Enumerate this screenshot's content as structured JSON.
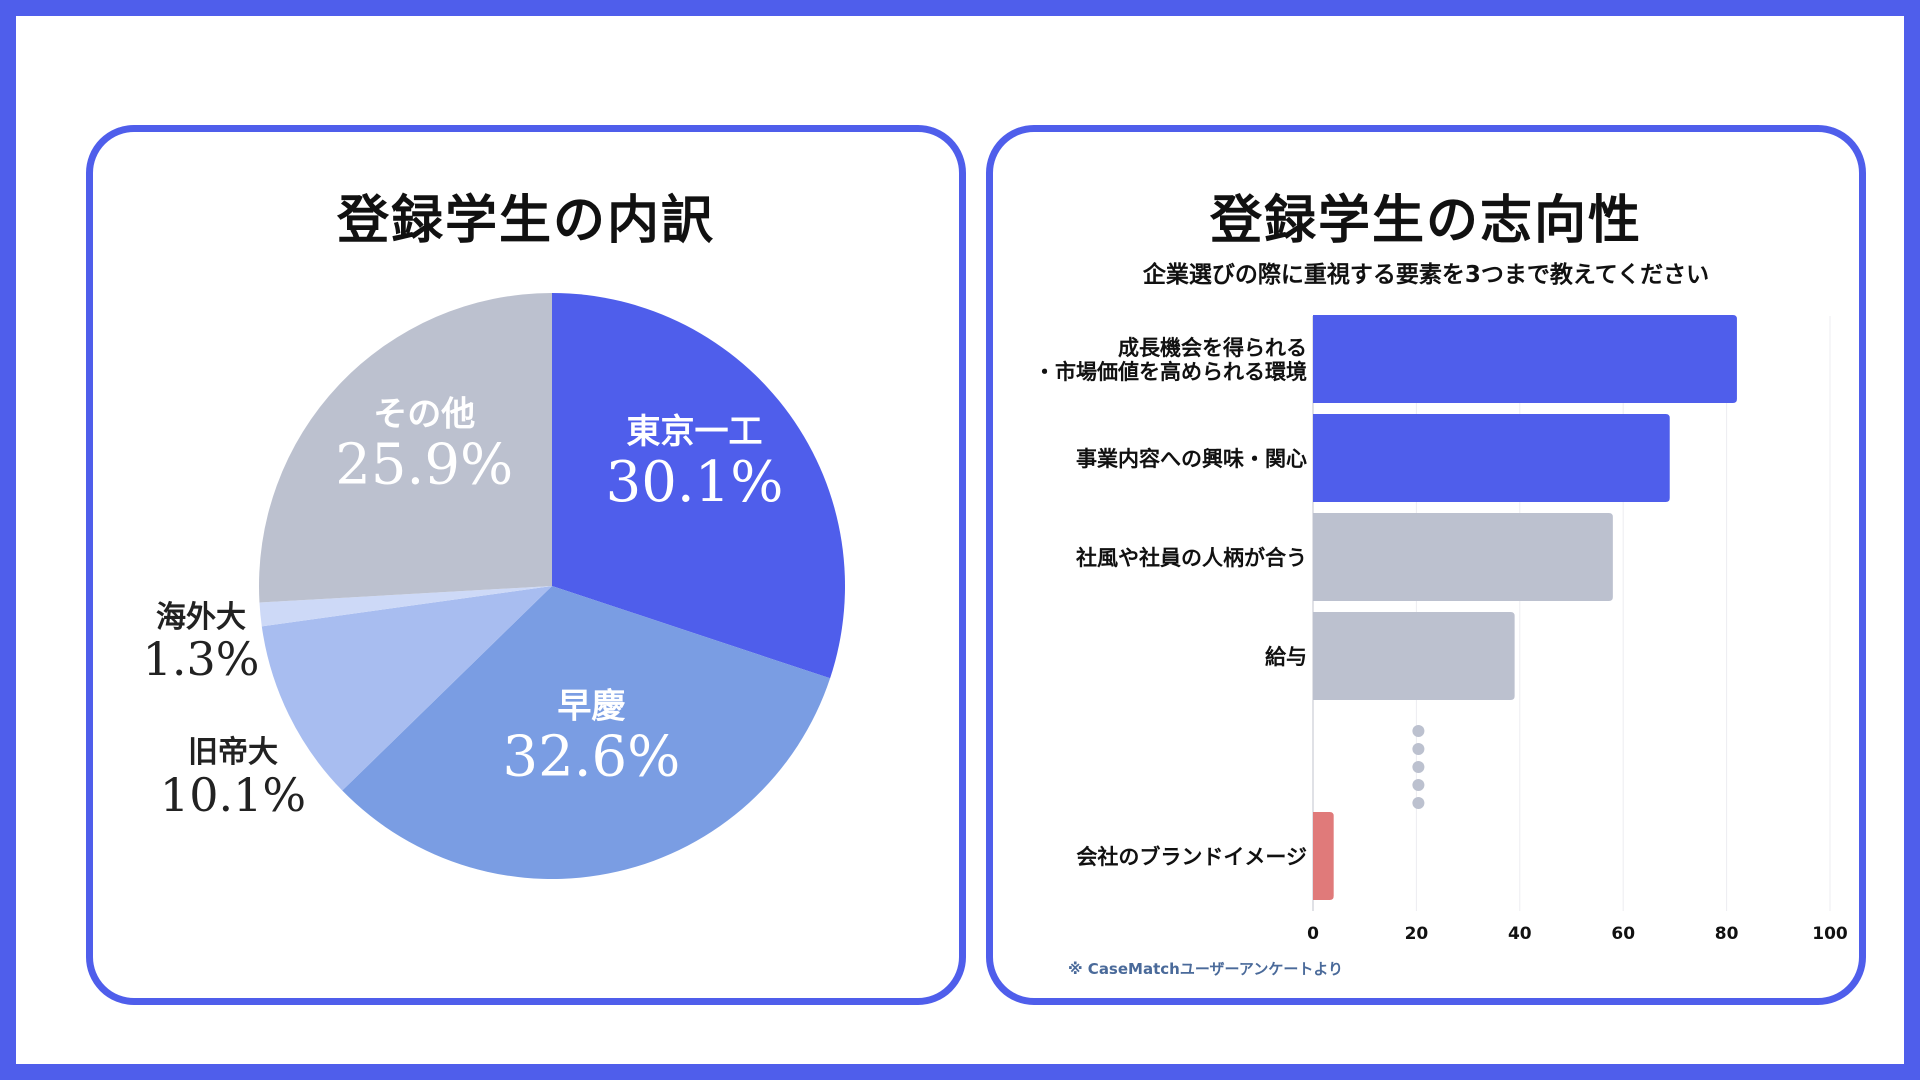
{
  "colors": {
    "frame": "#4f5eeb",
    "accent": "#4f5eeb",
    "gray": "#bcc1cf",
    "highlight_red": "#e07a7a"
  },
  "left_panel": {
    "title": "登録学生の内訳"
  },
  "right_panel": {
    "title": "登録学生の志向性",
    "subtitle": "企業選びの際に重視する要素を3つまで教えてください",
    "note": "※ CaseMatchユーザーアンケートより",
    "ellipsis_icon": "vertical-dots-icon"
  },
  "chart_data": [
    {
      "type": "pie",
      "title": "登録学生の内訳",
      "start": "12 o'clock, clockwise",
      "slices": [
        {
          "label": "東京一工",
          "value": 30.1,
          "display": "30.1%",
          "color": "#4f5eeb",
          "label_position": "inside"
        },
        {
          "label": "早慶",
          "value": 32.6,
          "display": "32.6%",
          "color": "#7a9de3",
          "label_position": "inside"
        },
        {
          "label": "旧帝大",
          "value": 10.1,
          "display": "10.1%",
          "color": "#a8bdf0",
          "label_position": "outside"
        },
        {
          "label": "海外大",
          "value": 1.3,
          "display": "1.3%",
          "color": "#cdd9f7",
          "label_position": "outside"
        },
        {
          "label": "その他",
          "value": 25.9,
          "display": "25.9%",
          "color": "#bcc1cf",
          "label_position": "inside"
        }
      ]
    },
    {
      "type": "bar",
      "orientation": "horizontal",
      "title": "登録学生の志向性",
      "subtitle": "企業選びの際に重視する要素を3つまで教えてください",
      "xlim": [
        0,
        100
      ],
      "xticks": [
        0,
        20,
        40,
        60,
        80,
        100
      ],
      "grid": true,
      "bars": [
        {
          "label_lines": [
            "成長機会を得られる",
            "・市場価値を高められる環境"
          ],
          "value": 82,
          "color": "#4f5eeb"
        },
        {
          "label_lines": [
            "事業内容への興味・関心"
          ],
          "value": 69,
          "color": "#4f5eeb"
        },
        {
          "label_lines": [
            "社風や社員の人柄が合う"
          ],
          "value": 58,
          "color": "#bcc1cf"
        },
        {
          "label_lines": [
            "給与"
          ],
          "value": 39,
          "color": "#bcc1cf"
        },
        {
          "label_lines": [
            "会社のブランドイメージ"
          ],
          "value": 4,
          "color": "#e07a7a"
        }
      ]
    }
  ]
}
